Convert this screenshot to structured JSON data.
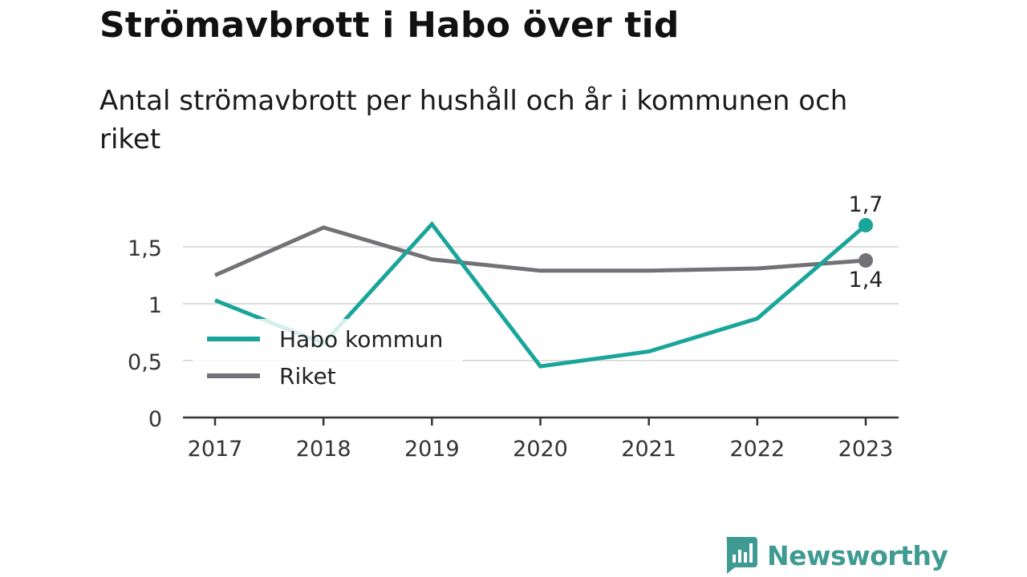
{
  "title": "Strömavbrott i Habo över tid",
  "subtitle": "Antal strömavbrott per hushåll och år i kommunen och riket",
  "brand": {
    "name": "Newsworthy",
    "color": "#3f9b92"
  },
  "chart_data": {
    "type": "line",
    "x": [
      "2017",
      "2018",
      "2019",
      "2020",
      "2021",
      "2022",
      "2023"
    ],
    "ylim": [
      0,
      1.7
    ],
    "yticks": [
      0,
      0.5,
      1,
      1.5
    ],
    "ytick_labels": [
      "0",
      "0,5",
      "1",
      "1,5"
    ],
    "grid": true,
    "legend_position": "lower-left",
    "series": [
      {
        "name": "Habo kommun",
        "color": "#1aa59a",
        "values": [
          1.03,
          0.65,
          1.7,
          0.45,
          0.58,
          0.87,
          1.69
        ],
        "end_label": "1,7"
      },
      {
        "name": "Riket",
        "color": "#727176",
        "values": [
          1.25,
          1.67,
          1.39,
          1.29,
          1.29,
          1.31,
          1.38
        ],
        "end_label": "1,4"
      }
    ]
  }
}
